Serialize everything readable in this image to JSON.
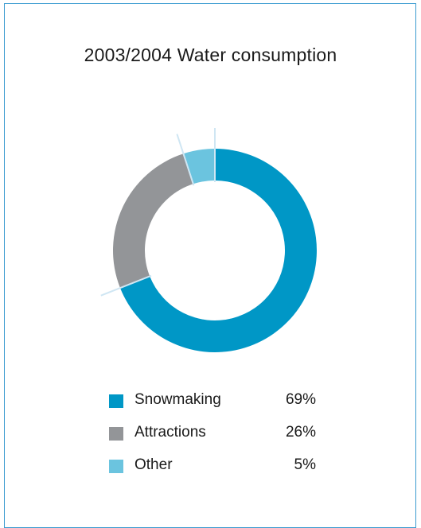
{
  "chart_data": {
    "type": "pie",
    "title": "2003/2004 Water consumption",
    "categories": [
      "Snowmaking",
      "Attractions",
      "Other"
    ],
    "values": [
      69,
      26,
      5
    ],
    "value_labels": [
      "69%",
      "26%",
      "5%"
    ],
    "colors": [
      "#0097c6",
      "#939598",
      "#6bc4df"
    ],
    "legend_position": "bottom",
    "style": "donut"
  }
}
